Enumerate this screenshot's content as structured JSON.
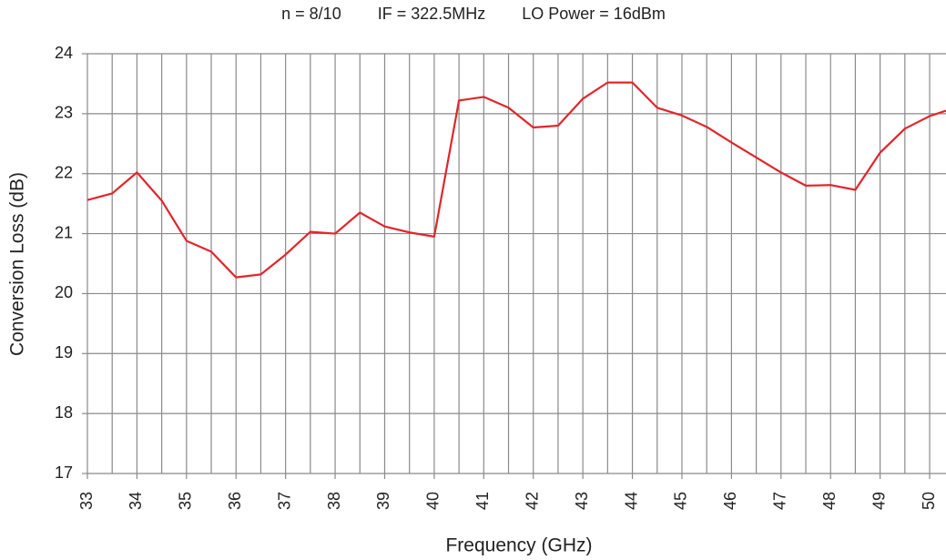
{
  "chart_data": {
    "type": "line",
    "title": "n = 8/10        IF = 322.5MHz        LO Power = 16dBm",
    "x_label": "Frequency (GHz)",
    "y_label": "Conversion Loss (dB)",
    "x": [
      33,
      33.5,
      34,
      34.5,
      35,
      35.5,
      36,
      36.5,
      37,
      37.5,
      38,
      38.5,
      39,
      39.5,
      40,
      40.5,
      41,
      41.5,
      42,
      42.5,
      43,
      43.5,
      44,
      44.5,
      45,
      45.5,
      46,
      46.5,
      47,
      47.5,
      48,
      48.5,
      49,
      49.5,
      50,
      50.33
    ],
    "series": [
      {
        "name": "Conversion Loss",
        "color": "#e0262b",
        "values": [
          21.56,
          21.67,
          22.02,
          21.55,
          20.88,
          20.7,
          20.27,
          20.32,
          20.65,
          21.03,
          21.0,
          21.35,
          21.12,
          21.02,
          20.95,
          23.22,
          23.28,
          23.1,
          22.77,
          22.8,
          23.25,
          23.52,
          23.52,
          23.1,
          22.97,
          22.78,
          22.52,
          22.27,
          22.02,
          21.8,
          21.81,
          21.73,
          22.35,
          22.75,
          22.96,
          23.05
        ]
      }
    ],
    "xlim": [
      33,
      50.33
    ],
    "ylim": [
      17,
      24
    ],
    "xticks": [
      33,
      34,
      35,
      36,
      37,
      38,
      39,
      40,
      41,
      42,
      43,
      44,
      45,
      46,
      47,
      48,
      49,
      50
    ],
    "yticks": [
      17,
      18,
      19,
      20,
      21,
      22,
      23,
      24
    ],
    "xgrid_step": 0.5,
    "grid": true
  }
}
